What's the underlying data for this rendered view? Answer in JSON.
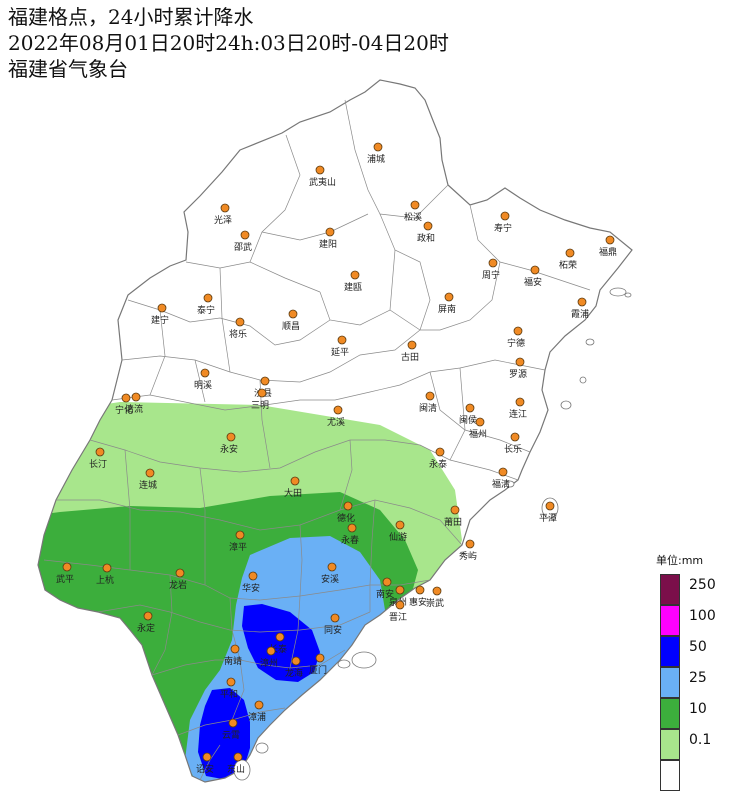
{
  "header": {
    "title": "福建格点，24小时累计降水",
    "period": "2022年08月01日20时24h:03日20时-04日20时",
    "agency": "福建省气象台"
  },
  "legend": {
    "unit": "单位:mm",
    "levels": [
      {
        "label": "250",
        "color": "#7b0f4a"
      },
      {
        "label": "100",
        "color": "#ff00ff"
      },
      {
        "label": "50",
        "color": "#0000ff"
      },
      {
        "label": "25",
        "color": "#6ab0f5"
      },
      {
        "label": "10",
        "color": "#3cae3c"
      },
      {
        "label": "0.1",
        "color": "#a8e68c"
      },
      {
        "label": "",
        "color": "#ffffff"
      }
    ]
  },
  "cities": [
    "浦城",
    "武夷山",
    "松溪",
    "政和",
    "光泽",
    "邵武",
    "建阳",
    "寿宁",
    "福鼎",
    "柘荣",
    "周宁",
    "福安",
    "霞浦",
    "建瓯",
    "屏南",
    "泰宁",
    "建宁",
    "将乐",
    "顺昌",
    "延平",
    "古田",
    "宁德",
    "罗源",
    "明溪",
    "沙县",
    "三明",
    "清流",
    "宁化",
    "尤溪",
    "闽清",
    "闽侯",
    "连江",
    "福州",
    "长乐",
    "永安",
    "长汀",
    "连城",
    "永泰",
    "福清",
    "平潭",
    "大田",
    "德化",
    "永春",
    "仙游",
    "莆田",
    "秀屿",
    "漳平",
    "武平",
    "上杭",
    "龙岩",
    "华安",
    "安溪",
    "南安",
    "泉州",
    "惠安",
    "崇武",
    "晋江",
    "同安",
    "长泰",
    "漳州",
    "龙海",
    "厦门",
    "南靖",
    "平和",
    "漳浦",
    "永定",
    "云霄",
    "诏安",
    "东山"
  ]
}
